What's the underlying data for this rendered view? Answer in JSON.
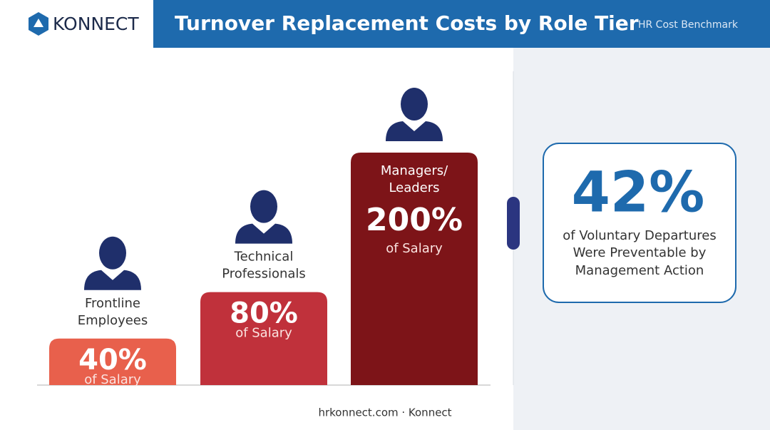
{
  "header": {
    "logo": "KONNECT",
    "title": "Turnover Replacement Costs by Role Tier",
    "tag": "HR Cost Benchmark"
  },
  "chart_data": {
    "type": "bar",
    "categories": [
      "Frontline Employees",
      "Technical Professionals",
      "Managers/ Leaders"
    ],
    "values": [
      40,
      80,
      200
    ],
    "value_labels": [
      "40%",
      "80%",
      "200%"
    ],
    "sublabels": [
      "of Salary",
      "of Salary",
      "of Salary"
    ],
    "colors": [
      "#e8604c",
      "#c0313b",
      "#7d1418"
    ],
    "ylim": [
      0,
      200
    ]
  },
  "callout": {
    "value": "42%",
    "lines": [
      "of Voluntary Departures",
      "Were Preventable by",
      "Management Action"
    ]
  },
  "footer": "hrkonnect.com · Konnect"
}
